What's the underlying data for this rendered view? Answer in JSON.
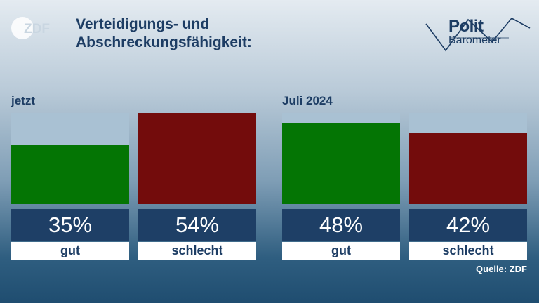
{
  "logo_text": "ZDF",
  "title_line1": "Verteidigungs- und",
  "title_line2": "Abschreckungsfähigkeit:",
  "brand": {
    "top": "Polit",
    "bottom": "Barometer"
  },
  "source": "Quelle: ZDF",
  "colors": {
    "good": "#047504",
    "bad": "#730c0c",
    "empty": "#a9c1d3",
    "value_box": "#1e3f66"
  },
  "chart_data": [
    {
      "type": "bar",
      "group_label": "jetzt",
      "categories": [
        "gut",
        "schlecht"
      ],
      "values": [
        35,
        54
      ],
      "value_labels": [
        "35%",
        "54%"
      ],
      "ylim": [
        0,
        54
      ]
    },
    {
      "type": "bar",
      "group_label": "Juli 2024",
      "categories": [
        "gut",
        "schlecht"
      ],
      "values": [
        48,
        42
      ],
      "value_labels": [
        "48%",
        "42%"
      ],
      "ylim": [
        0,
        54
      ]
    }
  ]
}
